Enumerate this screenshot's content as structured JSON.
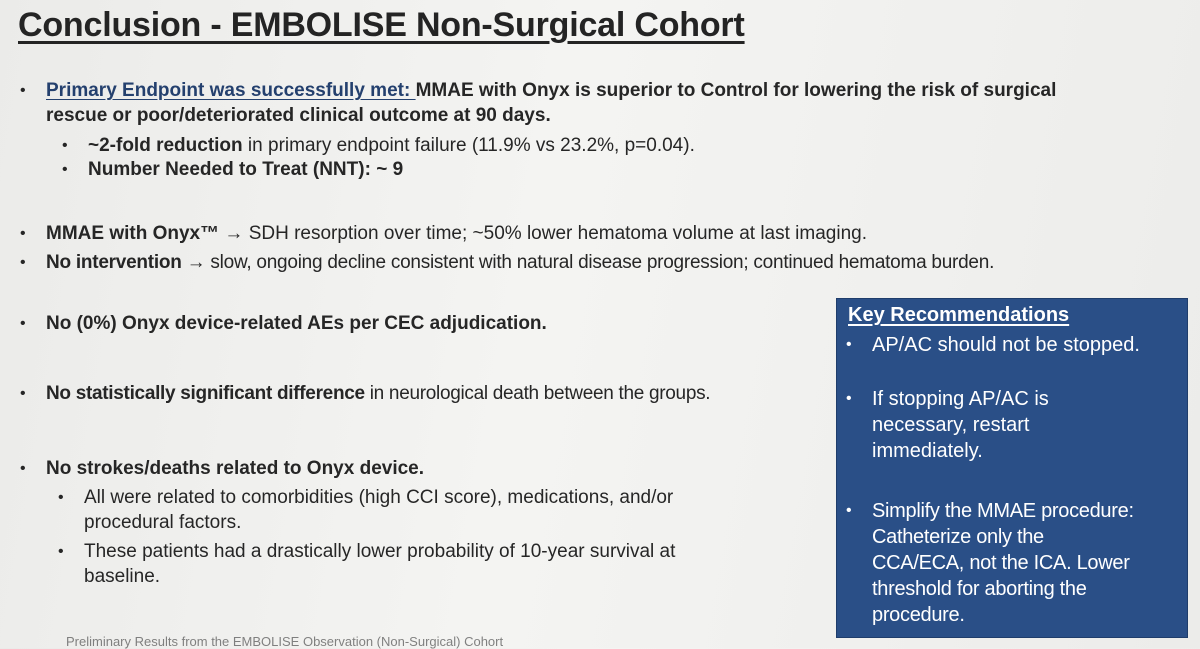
{
  "title": "Conclusion - EMBOLISE Non-Surgical Cohort",
  "bullet_char": "•",
  "points": {
    "p1": {
      "lead": "Primary Endpoint was successfully met: ",
      "line1": "MMAE with Onyx is superior to Control for lowering the risk of surgical",
      "line2": "rescue or poor/deteriorated clinical outcome at 90 days.",
      "sub1_bold": "~2-fold reduction",
      "sub1_rest": " in primary endpoint failure (11.9% vs 23.2%, p=0.04).",
      "sub2": "Number Needed to Treat (NNT): ~ 9"
    },
    "p2": {
      "bold": "MMAE with Onyx™ → ",
      "rest": "SDH resorption over time; ~50% lower hematoma volume at last imaging."
    },
    "p3": {
      "bold": "No intervention → ",
      "rest": "slow, ongoing decline consistent with natural disease progression; continued hematoma burden."
    },
    "p4": {
      "bold": "No (0%) Onyx device-related AEs per CEC adjudication."
    },
    "p5": {
      "bold": "No statistically significant difference",
      "rest": " in neurological death between the groups."
    },
    "p6": {
      "bold": "No strokes/deaths related to Onyx device.",
      "sub1_line1": "All were related to comorbidities (high CCI score), medications, and/or",
      "sub1_line2": "procedural factors.",
      "sub2_line1": "These patients had a drastically lower probability of 10-year survival at",
      "sub2_line2": "baseline."
    }
  },
  "key_recommendations": {
    "title": "Key Recommendations",
    "items": [
      {
        "lines": [
          "AP/AC should not be stopped."
        ]
      },
      {
        "lines": [
          "If stopping AP/AC is",
          "necessary, restart",
          "immediately."
        ]
      },
      {
        "lines": [
          "Simplify the MMAE procedure:",
          "Catheterize only the",
          "CCA/ECA, not the ICA. Lower",
          "threshold for aborting the",
          "procedure."
        ]
      }
    ]
  },
  "footer": "Preliminary Results from the EMBOLISE Observation (Non-Surgical) Cohort"
}
